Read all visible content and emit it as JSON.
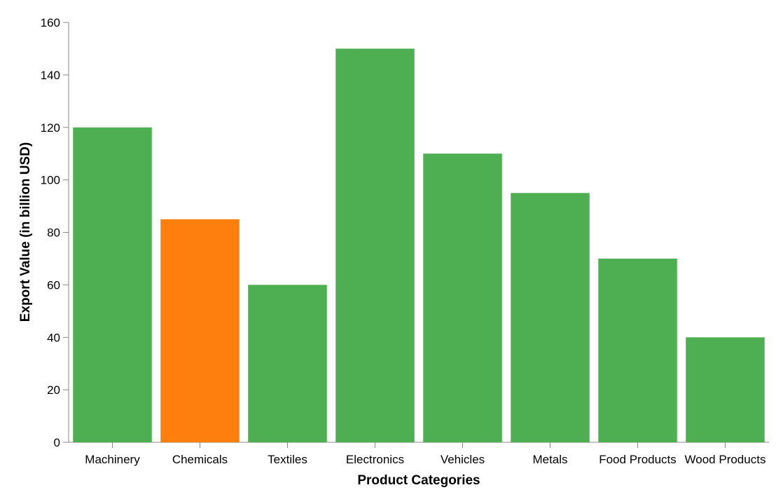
{
  "chart_data": {
    "type": "bar",
    "title": "",
    "xlabel": "Product Categories",
    "ylabel": "Export Value (in billion USD)",
    "categories": [
      "Machinery",
      "Chemicals",
      "Textiles",
      "Electronics",
      "Vehicles",
      "Metals",
      "Food Products",
      "Wood Products"
    ],
    "values": [
      120,
      85,
      60,
      150,
      110,
      95,
      70,
      40
    ],
    "ylim": [
      0,
      160
    ],
    "yticks": [
      0,
      20,
      40,
      60,
      80,
      100,
      120,
      140,
      160
    ],
    "grid": false,
    "legend": "none",
    "highlight_category": "Chemicals",
    "colors": {
      "default": "#4daf52",
      "highlight": "#ff7f0e",
      "axis": "#888888",
      "text": "#000000"
    }
  }
}
